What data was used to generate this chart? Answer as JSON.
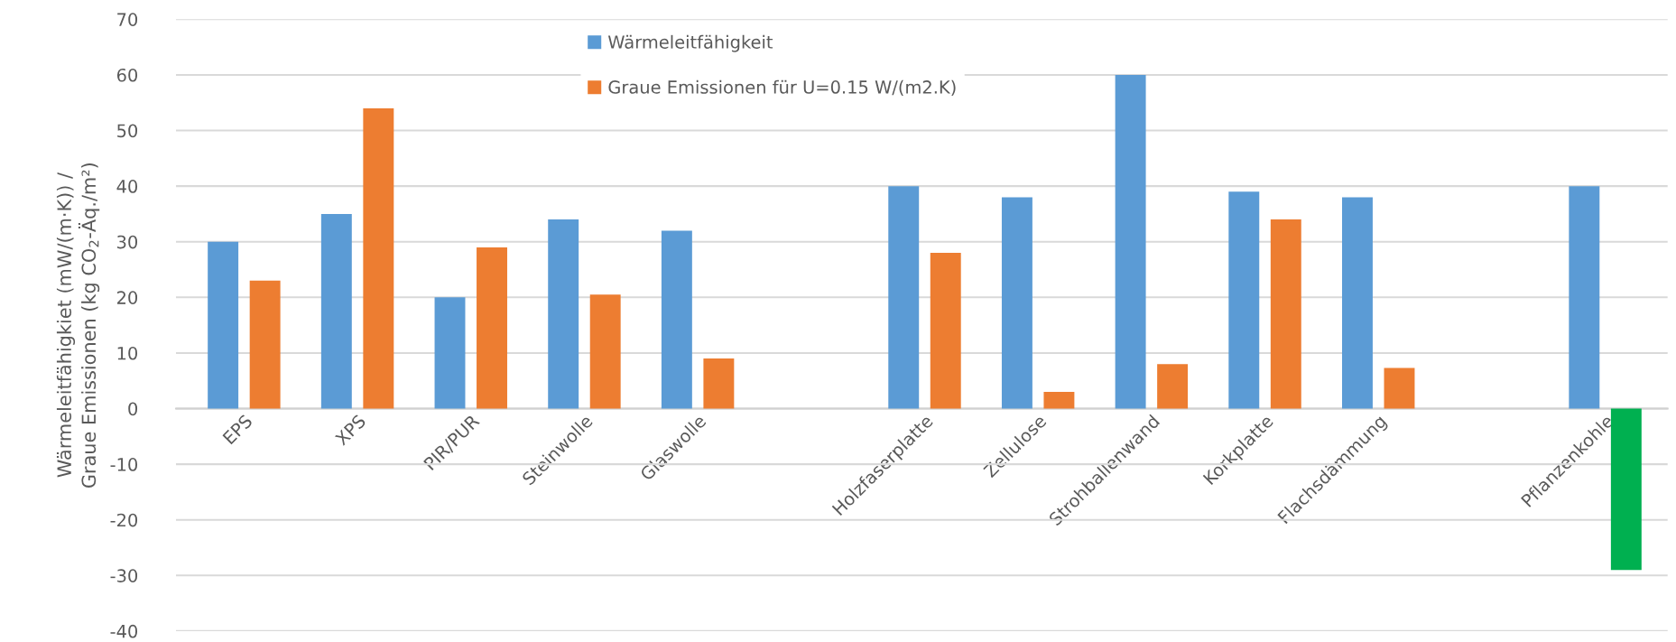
{
  "chart_data": {
    "type": "bar",
    "ylabel": "Wärmeleitfähigkiet (mW/(m·K)) /\nGraue Emissionen (kg CO$_{2}$-Äq./m²)",
    "categories": [
      "EPS",
      "XPS",
      "PIR/PUR",
      "Steinwolle",
      "Glaswolle",
      null,
      "Holzfaserplatte",
      "Zellulose",
      "Strohballenwand",
      "Korkplatte",
      "Flachsdämmung",
      null,
      "Pflanzenkohle"
    ],
    "series": [
      {
        "name": "Wärmeleitfähigkeit",
        "color": "#5b9bd5",
        "values": [
          30,
          35,
          20,
          34,
          32,
          null,
          40,
          38,
          60,
          39,
          38,
          null,
          40
        ]
      },
      {
        "name": "Graue Emissionen für U=0.15 W/(m2.K)",
        "color": "#ed7d31",
        "colors": [
          "#ed7d31",
          "#ed7d31",
          "#ed7d31",
          "#ed7d31",
          "#ed7d31",
          "#ed7d31",
          "#ed7d31",
          "#ed7d31",
          "#ed7d31",
          "#ed7d31",
          "#ed7d31",
          "#ed7d31",
          "#00b050"
        ],
        "values": [
          23,
          54,
          29,
          20.5,
          9,
          null,
          28,
          3,
          8,
          34,
          7.3,
          null,
          -29
        ]
      }
    ],
    "ylim": [
      -40,
      70
    ],
    "yticks": [
      -40,
      -30,
      -20,
      -10,
      0,
      10,
      20,
      30,
      40,
      50,
      60,
      70
    ],
    "grid": "y",
    "legend": "top"
  }
}
